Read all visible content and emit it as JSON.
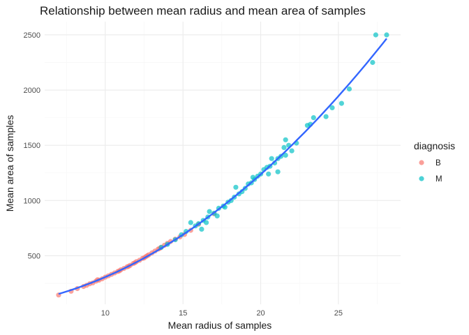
{
  "chart_data": {
    "type": "scatter",
    "title": "Relationship between mean radius and mean area of samples",
    "xlabel": "Mean radius of samples",
    "ylabel": "Mean area of samples",
    "xlim": [
      6.1,
      29.0
    ],
    "ylim": [
      60,
      2620
    ],
    "xticks": [
      10,
      15,
      20,
      25
    ],
    "xtick_labels": [
      "10",
      "15",
      "20",
      "25"
    ],
    "xminor": [
      7.5,
      12.5,
      17.5,
      22.5,
      27.5
    ],
    "yticks": [
      500,
      1000,
      1500,
      2000,
      2500
    ],
    "ytick_labels": [
      "500",
      "1000",
      "1500",
      "2000",
      "2500"
    ],
    "yminor": [
      250,
      750,
      1250,
      1750,
      2250
    ],
    "grid": true,
    "legend": {
      "title": "diagnosis",
      "position": "right"
    },
    "series": [
      {
        "name": "B",
        "color": "#F8766D",
        "points": [
          [
            7.0,
            144
          ],
          [
            7.8,
            178
          ],
          [
            8.2,
            202
          ],
          [
            8.6,
            221
          ],
          [
            8.8,
            232
          ],
          [
            9.0,
            246
          ],
          [
            9.2,
            254
          ],
          [
            9.4,
            270
          ],
          [
            9.6,
            279
          ],
          [
            9.8,
            291
          ],
          [
            10.0,
            306
          ],
          [
            10.2,
            318
          ],
          [
            10.4,
            331
          ],
          [
            10.6,
            344
          ],
          [
            10.8,
            357
          ],
          [
            11.0,
            372
          ],
          [
            11.2,
            385
          ],
          [
            11.4,
            399
          ],
          [
            11.6,
            413
          ],
          [
            11.8,
            429
          ],
          [
            12.0,
            446
          ],
          [
            12.2,
            459
          ],
          [
            12.4,
            476
          ],
          [
            12.6,
            491
          ],
          [
            12.8,
            508
          ],
          [
            13.0,
            525
          ],
          [
            13.2,
            542
          ],
          [
            13.4,
            560
          ],
          [
            13.6,
            577
          ],
          [
            13.8,
            594
          ],
          [
            14.0,
            612
          ],
          [
            14.2,
            629
          ],
          [
            14.5,
            650
          ],
          [
            14.8,
            670
          ],
          [
            15.1,
            693
          ],
          [
            15.5,
            730
          ],
          [
            16.0,
            785
          ],
          [
            17.0,
            880
          ],
          [
            9.5,
            282
          ],
          [
            10.9,
            362
          ],
          [
            11.5,
            404
          ],
          [
            12.5,
            480
          ],
          [
            13.5,
            566
          ],
          [
            12.7,
            500
          ],
          [
            11.9,
            436
          ]
        ]
      },
      {
        "name": "M",
        "color": "#00BFC4",
        "points": [
          [
            13.6,
            575
          ],
          [
            14.0,
            603
          ],
          [
            14.5,
            645
          ],
          [
            14.9,
            690
          ],
          [
            15.2,
            720
          ],
          [
            15.5,
            800
          ],
          [
            15.8,
            770
          ],
          [
            16.0,
            790
          ],
          [
            16.3,
            820
          ],
          [
            16.6,
            850
          ],
          [
            16.7,
            900
          ],
          [
            17.0,
            885
          ],
          [
            17.3,
            930
          ],
          [
            17.6,
            950
          ],
          [
            17.9,
            985
          ],
          [
            18.1,
            1000
          ],
          [
            18.3,
            1030
          ],
          [
            18.6,
            1060
          ],
          [
            18.8,
            1080
          ],
          [
            19.0,
            1110
          ],
          [
            19.2,
            1150
          ],
          [
            19.4,
            1160
          ],
          [
            19.6,
            1190
          ],
          [
            19.8,
            1220
          ],
          [
            20.0,
            1240
          ],
          [
            20.2,
            1280
          ],
          [
            20.4,
            1300
          ],
          [
            20.6,
            1310
          ],
          [
            20.7,
            1380
          ],
          [
            20.9,
            1340
          ],
          [
            21.1,
            1380
          ],
          [
            21.3,
            1400
          ],
          [
            21.6,
            1410
          ],
          [
            21.5,
            1480
          ],
          [
            21.6,
            1550
          ],
          [
            21.8,
            1500
          ],
          [
            22.0,
            1450
          ],
          [
            22.3,
            1520
          ],
          [
            23.0,
            1680
          ],
          [
            23.2,
            1690
          ],
          [
            23.4,
            1750
          ],
          [
            24.2,
            1760
          ],
          [
            24.6,
            1840
          ],
          [
            25.2,
            1880
          ],
          [
            25.7,
            2010
          ],
          [
            27.2,
            2250
          ],
          [
            27.4,
            2500
          ],
          [
            28.1,
            2500
          ],
          [
            16.2,
            740
          ],
          [
            17.2,
            860
          ],
          [
            18.4,
            1120
          ],
          [
            19.5,
            1210
          ],
          [
            20.5,
            1240
          ],
          [
            21.1,
            1260
          ],
          [
            16.5,
            800
          ],
          [
            17.7,
            940
          ]
        ]
      }
    ],
    "trend_line": {
      "color": "#3366FF",
      "x_range": [
        7.0,
        28.1
      ]
    }
  }
}
